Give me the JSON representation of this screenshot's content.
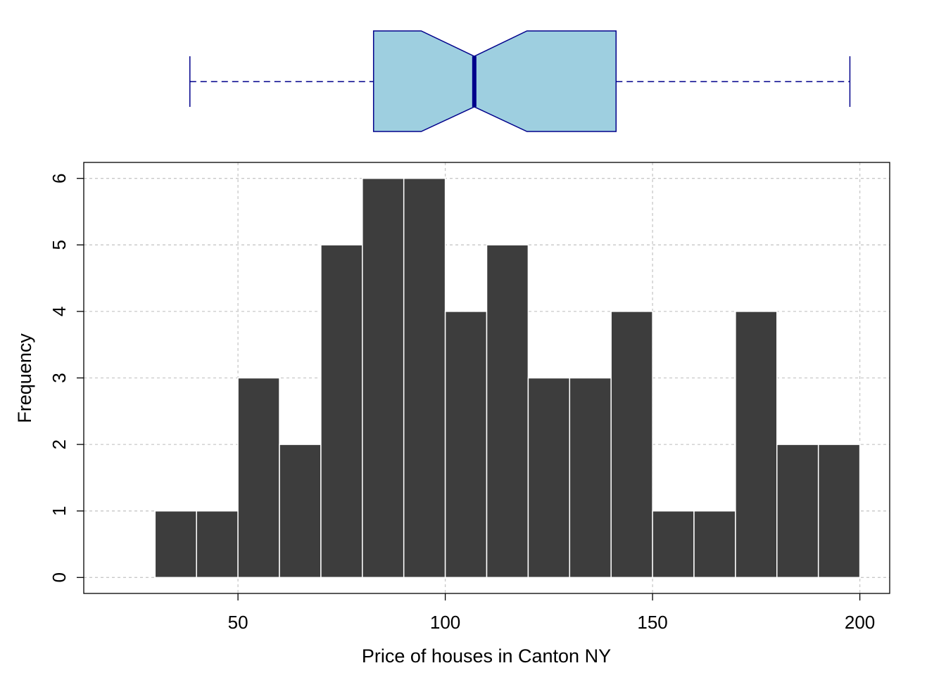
{
  "chart_data": {
    "type": "bar",
    "subtype": "histogram with notched boxplot",
    "xlabel": "Price of houses in Canton NY",
    "ylabel": "Frequency",
    "xlim": [
      20,
      200
    ],
    "ylim": [
      0,
      6
    ],
    "xticks": [
      50,
      100,
      150,
      200
    ],
    "yticks": [
      0,
      1,
      2,
      3,
      4,
      5,
      6
    ],
    "grid": true,
    "bin_edges": [
      30,
      40,
      50,
      60,
      70,
      80,
      90,
      100,
      110,
      120,
      130,
      140,
      150,
      160,
      170,
      180,
      190,
      200
    ],
    "values": [
      1,
      1,
      3,
      2,
      5,
      6,
      6,
      4,
      5,
      3,
      3,
      4,
      1,
      1,
      4,
      2,
      2
    ],
    "boxplot": {
      "whisker_low": 38.4,
      "q1": 82.7,
      "notch_low": 94.2,
      "median": 107.0,
      "notch_high": 119.7,
      "q3": 141.2,
      "whisker_high": 197.6
    },
    "colors": {
      "bars": "#3d3d3d",
      "bar_edges": "#ffffff",
      "box_fill": "#9ecfe0",
      "box_border": "#00008b",
      "grid": "#c8c8c8"
    }
  }
}
